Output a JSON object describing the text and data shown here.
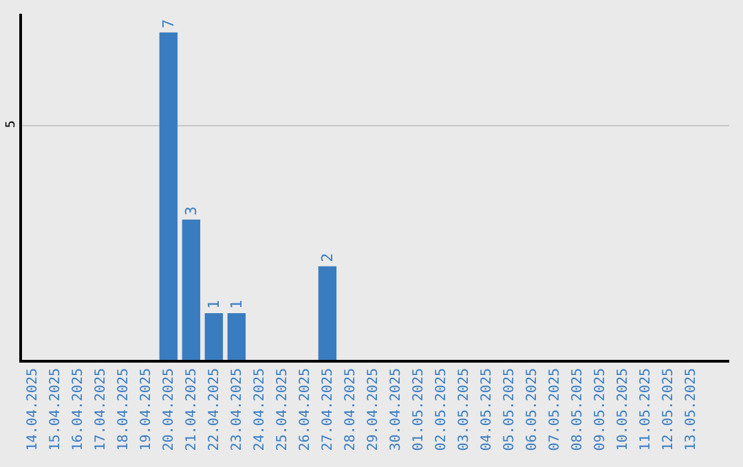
{
  "chart_data": {
    "type": "bar",
    "categories": [
      "14.04.2025",
      "15.04.2025",
      "16.04.2025",
      "17.04.2025",
      "18.04.2025",
      "19.04.2025",
      "20.04.2025",
      "21.04.2025",
      "22.04.2025",
      "23.04.2025",
      "24.04.2025",
      "25.04.2025",
      "26.04.2025",
      "27.04.2025",
      "28.04.2025",
      "29.04.2025",
      "30.04.2025",
      "01.05.2025",
      "02.05.2025",
      "03.05.2025",
      "04.05.2025",
      "05.05.2025",
      "06.05.2025",
      "07.05.2025",
      "08.05.2025",
      "09.05.2025",
      "10.05.2025",
      "11.05.2025",
      "12.05.2025",
      "13.05.2025"
    ],
    "values": [
      0,
      0,
      0,
      0,
      0,
      0,
      7,
      3,
      1,
      1,
      0,
      0,
      0,
      2,
      0,
      0,
      0,
      0,
      0,
      0,
      0,
      0,
      0,
      0,
      0,
      0,
      0,
      0,
      0,
      0
    ],
    "value_labels": [
      null,
      null,
      null,
      null,
      null,
      null,
      "7",
      "3",
      "1",
      "1",
      null,
      null,
      null,
      "2",
      null,
      null,
      null,
      null,
      null,
      null,
      null,
      null,
      null,
      null,
      null,
      null,
      null,
      null,
      null,
      null
    ],
    "color": "#3a7cc0",
    "ylim": [
      0,
      7.4
    ],
    "yticks": [
      5
    ],
    "grid": "y",
    "legend": false
  }
}
